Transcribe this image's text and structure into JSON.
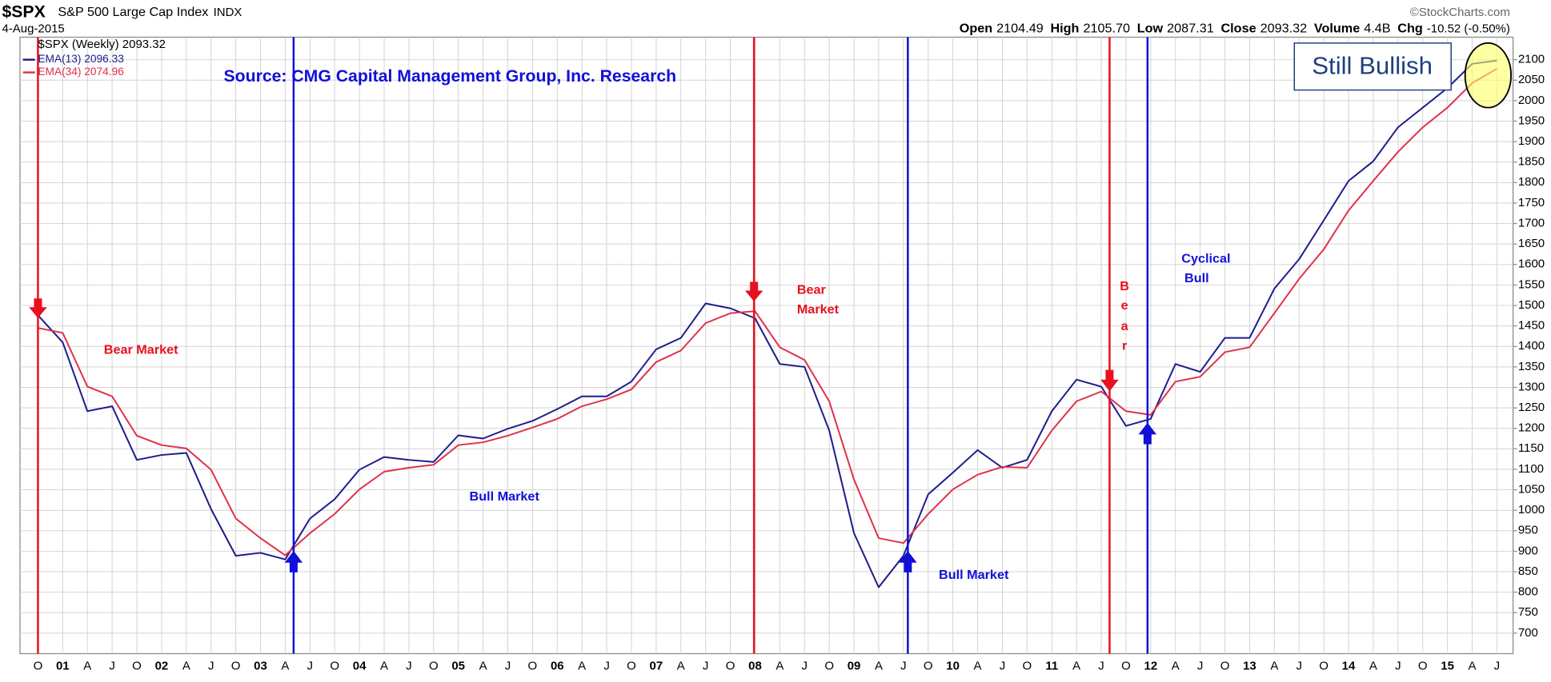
{
  "chart_data": {
    "type": "line",
    "symbol": "$SPX",
    "index_name": "S&P 500 Large Cap Index",
    "exchange": "INDX",
    "date": "4-Aug-2015",
    "watermark": "©StockCharts.com",
    "quote": {
      "open_label": "Open",
      "open": "2104.49",
      "high_label": "High",
      "high": "2105.70",
      "low_label": "Low",
      "low": "2087.31",
      "close_label": "Close",
      "close": "2093.32",
      "volume_label": "Volume",
      "volume": "4.4B",
      "chg_label": "Chg",
      "chg": "-10.52 (-0.50%)"
    },
    "legend_title": "$SPX (Weekly) 2093.32",
    "categories": [
      "O",
      "01",
      "A",
      "J",
      "O",
      "02",
      "A",
      "J",
      "O",
      "03",
      "A",
      "J",
      "O",
      "04",
      "A",
      "J",
      "O",
      "05",
      "A",
      "J",
      "O",
      "06",
      "A",
      "J",
      "O",
      "07",
      "A",
      "J",
      "O",
      "08",
      "A",
      "J",
      "O",
      "09",
      "A",
      "J",
      "O",
      "10",
      "A",
      "J",
      "O",
      "11",
      "A",
      "J",
      "O",
      "12",
      "A",
      "J",
      "O",
      "13",
      "A",
      "J",
      "O",
      "14",
      "A",
      "J",
      "O",
      "15",
      "A",
      "J"
    ],
    "series": [
      {
        "name": "EMA(13) 2096.33",
        "color": "#1c1c8c",
        "values": [
          1476,
          1410,
          1242,
          1254,
          1123,
          1135,
          1140,
          1003,
          889,
          896,
          880,
          980,
          1027,
          1099,
          1130,
          1123,
          1118,
          1183,
          1175,
          1199,
          1218,
          1247,
          1278,
          1278,
          1314,
          1393,
          1421,
          1505,
          1493,
          1469,
          1357,
          1350,
          1195,
          944,
          812,
          889,
          1039,
          1092,
          1147,
          1104,
          1123,
          1242,
          1319,
          1302,
          1206,
          1223,
          1357,
          1338,
          1421,
          1421,
          1541,
          1613,
          1708,
          1804,
          1852,
          1935,
          1983,
          2031,
          2090,
          2098
        ]
      },
      {
        "name": "EMA(34) 2074.96",
        "color": "#e0304a",
        "values": [
          1445,
          1433,
          1302,
          1278,
          1182,
          1159,
          1151,
          1099,
          980,
          932,
          890,
          944,
          991,
          1051,
          1094,
          1104,
          1111,
          1159,
          1166,
          1182,
          1202,
          1223,
          1254,
          1271,
          1295,
          1362,
          1390,
          1457,
          1481,
          1486,
          1398,
          1367,
          1266,
          1075,
          932,
          920,
          991,
          1051,
          1087,
          1106,
          1104,
          1195,
          1266,
          1290,
          1242,
          1233,
          1314,
          1326,
          1386,
          1398,
          1481,
          1565,
          1637,
          1732,
          1804,
          1875,
          1935,
          1983,
          2043,
          2078
        ]
      }
    ],
    "ylim": [
      650,
      2155
    ],
    "yticks": [
      700,
      750,
      800,
      850,
      900,
      950,
      1000,
      1050,
      1100,
      1150,
      1200,
      1250,
      1300,
      1350,
      1400,
      1450,
      1500,
      1550,
      1600,
      1650,
      1700,
      1750,
      1800,
      1850,
      1900,
      1950,
      2000,
      2050,
      2100
    ],
    "grid": true,
    "annotations": {
      "source": "Source: CMG Capital Management Group, Inc. Research",
      "still_bullish": "Still Bullish",
      "bear_market_1": "Bear Market",
      "bull_market_1": "Bull Market",
      "bear_market_2": [
        "Bear",
        "Market"
      ],
      "bull_market_2": "Bull Market",
      "bear_3": [
        "B",
        "e",
        "a",
        "r"
      ],
      "cyclical_bull": [
        "Cyclical",
        "Bull"
      ]
    }
  }
}
